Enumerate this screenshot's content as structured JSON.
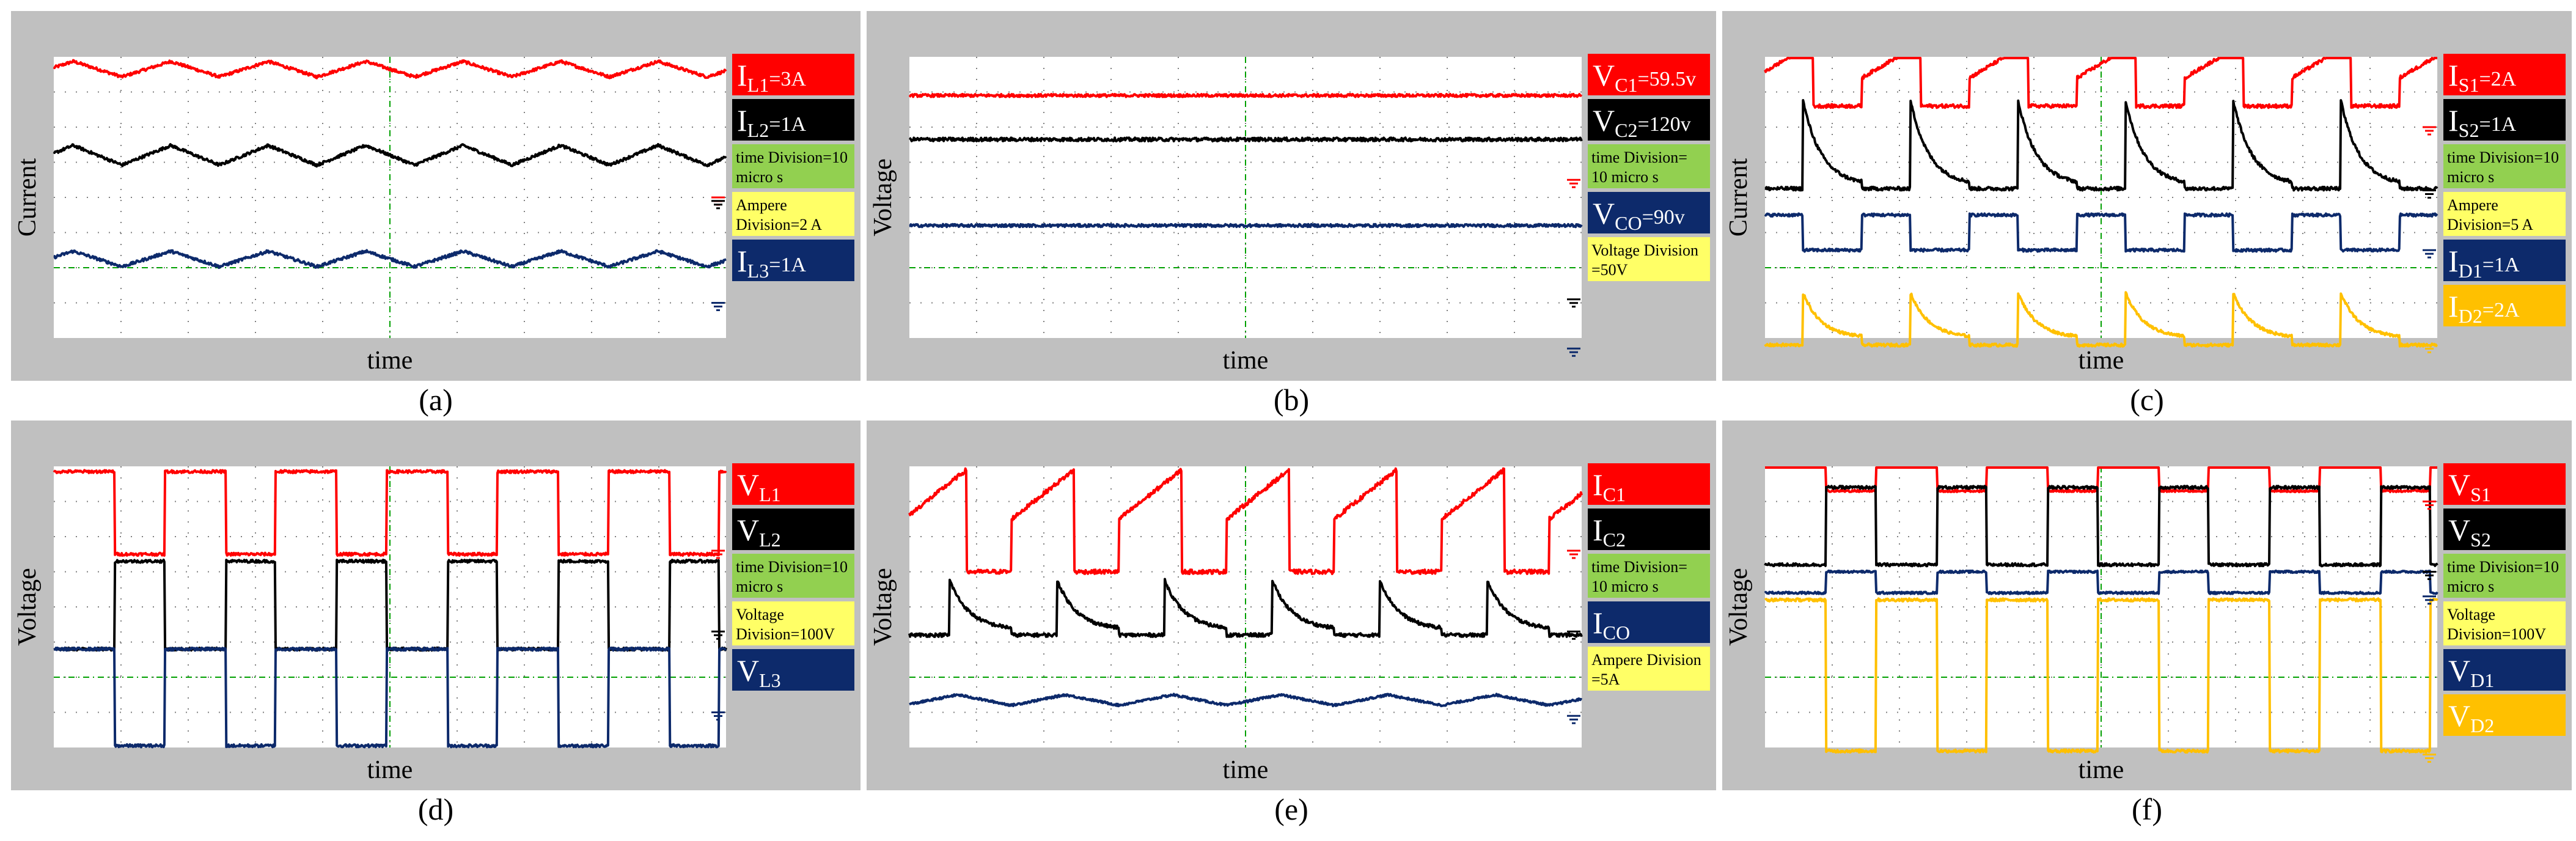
{
  "colors": {
    "red": "#ff0000",
    "black": "#000000",
    "navy": "#0d2a6b",
    "gold": "#ffc000",
    "green": "#92d050",
    "yellow": "#ffff66",
    "frame": "#c0c0c0",
    "grid_dot": "#808080",
    "ground": "#00a000"
  },
  "chart_data": [
    {
      "id": "a",
      "caption": "(a)",
      "type": "line",
      "title": "",
      "xlabel": "time",
      "ylabel": "Current",
      "x_divisions": 10,
      "y_divisions": 8,
      "ylim": [
        0,
        8
      ],
      "legend": [
        {
          "kind": "label",
          "color": "red",
          "pre": "I",
          "sub": "L1",
          "post": "=3A"
        },
        {
          "kind": "label",
          "color": "black",
          "pre": "I",
          "sub": "L2",
          "post": "=1A"
        },
        {
          "kind": "note",
          "color": "green",
          "lines": [
            "time Division=10",
            "micro s"
          ]
        },
        {
          "kind": "note",
          "color": "yellow",
          "lines": [
            "Ampere",
            "Division=2 A"
          ]
        },
        {
          "kind": "label",
          "color": "navy",
          "pre": "I",
          "sub": "L3",
          "post": "=1A"
        }
      ],
      "series": [
        {
          "name": "IL1",
          "color": "red",
          "shape": "triangle",
          "mid": 7.65,
          "amp": 0.22,
          "period": 1.45,
          "phase": 0.3,
          "noise": 0.04
        },
        {
          "name": "IL2",
          "color": "black",
          "shape": "triangle",
          "mid": 5.2,
          "amp": 0.28,
          "period": 1.45,
          "phase": 0.3,
          "noise": 0.04
        },
        {
          "name": "IL3",
          "color": "navy",
          "shape": "triangle",
          "mid": 2.25,
          "amp": 0.22,
          "period": 1.45,
          "phase": 0.3,
          "noise": 0.04
        }
      ],
      "ground_markers": [
        {
          "color": "red",
          "y": 4.0
        },
        {
          "color": "black",
          "y": 3.9
        },
        {
          "color": "navy",
          "y": 1.0
        }
      ]
    },
    {
      "id": "b",
      "caption": "(b)",
      "type": "line",
      "title": "",
      "xlabel": "time",
      "ylabel": "Voltage",
      "x_divisions": 10,
      "y_divisions": 8,
      "ylim": [
        0,
        8
      ],
      "legend": [
        {
          "kind": "label",
          "color": "red",
          "pre": "V",
          "sub": "C1",
          "post": "=59.5v"
        },
        {
          "kind": "label",
          "color": "black",
          "pre": "V",
          "sub": "C2",
          "post": "=120v"
        },
        {
          "kind": "note",
          "color": "green",
          "lines": [
            "time Division=",
            "10 micro s"
          ]
        },
        {
          "kind": "label",
          "color": "navy",
          "pre": "V",
          "sub": "CO",
          "post": "=90v"
        },
        {
          "kind": "note",
          "color": "yellow",
          "lines": [
            "Voltage Division",
            "=50V"
          ]
        }
      ],
      "series": [
        {
          "name": "VC1",
          "color": "red",
          "shape": "flat",
          "mid": 6.9,
          "amp": 0,
          "period": 1,
          "phase": 0,
          "noise": 0.04
        },
        {
          "name": "VC2",
          "color": "black",
          "shape": "flat",
          "mid": 5.65,
          "amp": 0,
          "period": 1,
          "phase": 0,
          "noise": 0.05
        },
        {
          "name": "VCO",
          "color": "navy",
          "shape": "flat",
          "mid": 3.2,
          "amp": 0,
          "period": 1,
          "phase": 0,
          "noise": 0.04
        }
      ],
      "ground_markers": [
        {
          "color": "red",
          "y": 4.5
        },
        {
          "color": "black",
          "y": 1.1
        },
        {
          "color": "navy",
          "y": -0.3
        }
      ]
    },
    {
      "id": "c",
      "caption": "(c)",
      "type": "line",
      "title": "",
      "xlabel": "time",
      "ylabel": "Current",
      "x_divisions": 10,
      "y_divisions": 8,
      "ylim": [
        0,
        8
      ],
      "legend": [
        {
          "kind": "label",
          "color": "red",
          "pre": "I",
          "sub": "S1",
          "post": "=2A"
        },
        {
          "kind": "label",
          "color": "black",
          "pre": "I",
          "sub": "S2",
          "post": "=1A"
        },
        {
          "kind": "note",
          "color": "green",
          "lines": [
            "time Division=10",
            "micro s"
          ]
        },
        {
          "kind": "note",
          "color": "yellow",
          "lines": [
            "Ampere",
            "Division=5 A"
          ]
        },
        {
          "kind": "label",
          "color": "navy",
          "pre": "I",
          "sub": "D1",
          "post": "=1A"
        },
        {
          "kind": "label",
          "color": "gold",
          "pre": "I",
          "sub": "D2",
          "post": "=2A"
        }
      ],
      "series": [
        {
          "name": "IS1",
          "color": "red",
          "shape": "ramp_on",
          "base": 6.6,
          "hi_start": 7.4,
          "hi_end": 8.4,
          "period": 1.6,
          "duty": 0.55,
          "phase": 0.1,
          "noise": 0.05
        },
        {
          "name": "IS2",
          "color": "black",
          "shape": "decay_peak",
          "base": 4.25,
          "low": 4.35,
          "peak": 6.8,
          "period": 1.6,
          "duty": 0.45,
          "phase": 0.1,
          "noise": 0.05
        },
        {
          "name": "ID1",
          "color": "navy",
          "shape": "square",
          "lo": 2.5,
          "hi": 3.5,
          "period": 1.6,
          "duty": 0.45,
          "phase": 0.1,
          "noise": 0.04
        },
        {
          "name": "ID2",
          "color": "gold",
          "shape": "decay_peak",
          "base": -0.2,
          "low": 0.0,
          "peak": 1.3,
          "period": 1.6,
          "duty": 0.45,
          "phase": 0.1,
          "noise": 0.04
        }
      ],
      "ground_markers": [
        {
          "color": "red",
          "y": 6.0
        },
        {
          "color": "black",
          "y": 4.2
        },
        {
          "color": "navy",
          "y": 2.5
        },
        {
          "color": "gold",
          "y": -0.2
        }
      ]
    },
    {
      "id": "d",
      "caption": "(d)",
      "type": "line",
      "title": "",
      "xlabel": "time",
      "ylabel": "Voltage",
      "x_divisions": 10,
      "y_divisions": 8,
      "ylim": [
        0,
        8
      ],
      "legend": [
        {
          "kind": "label",
          "color": "red",
          "pre": "V",
          "sub": "L1",
          "post": ""
        },
        {
          "kind": "label",
          "color": "black",
          "pre": "V",
          "sub": "L2",
          "post": ""
        },
        {
          "kind": "note",
          "color": "green",
          "lines": [
            "time Division=10",
            "micro s"
          ]
        },
        {
          "kind": "note",
          "color": "yellow",
          "lines": [
            "Voltage",
            "Division=100V"
          ]
        },
        {
          "kind": "label",
          "color": "navy",
          "pre": "V",
          "sub": "L3",
          "post": ""
        }
      ],
      "series": [
        {
          "name": "VL1",
          "color": "red",
          "shape": "square",
          "lo": 5.5,
          "hi": 7.85,
          "period": 1.65,
          "duty": 0.55,
          "phase": 0.0,
          "noise": 0.04
        },
        {
          "name": "VL2",
          "color": "black",
          "shape": "square_inv",
          "lo": 2.8,
          "hi": 5.3,
          "period": 1.65,
          "duty": 0.55,
          "phase": 0.0,
          "noise": 0.04
        },
        {
          "name": "VL3",
          "color": "navy",
          "shape": "square",
          "lo": 0.05,
          "hi": 2.8,
          "period": 1.65,
          "duty": 0.55,
          "phase": 0.0,
          "noise": 0.04
        }
      ],
      "ground_markers": [
        {
          "color": "red",
          "y": 5.6
        },
        {
          "color": "black",
          "y": 3.3
        },
        {
          "color": "navy",
          "y": 1.0
        }
      ]
    },
    {
      "id": "e",
      "caption": "(e)",
      "type": "line",
      "title": "",
      "xlabel": "time",
      "ylabel": "Voltage",
      "x_divisions": 10,
      "y_divisions": 8,
      "ylim": [
        0,
        8
      ],
      "legend": [
        {
          "kind": "label",
          "color": "red",
          "pre": "I",
          "sub": "C1",
          "post": ""
        },
        {
          "kind": "label",
          "color": "black",
          "pre": "I",
          "sub": "C2",
          "post": ""
        },
        {
          "kind": "note",
          "color": "green",
          "lines": [
            "time Division=",
            "10 micro s"
          ]
        },
        {
          "kind": "label",
          "color": "navy",
          "pre": "I",
          "sub": "CO",
          "post": ""
        },
        {
          "kind": "note",
          "color": "yellow",
          "lines": [
            "Ampere Division",
            "=5A"
          ]
        }
      ],
      "series": [
        {
          "name": "IC1",
          "color": "red",
          "shape": "ramp_on",
          "base": 5.0,
          "hi_start": 6.5,
          "hi_end": 7.9,
          "period": 1.6,
          "duty": 0.58,
          "phase": 0.05,
          "noise": 0.06
        },
        {
          "name": "IC2",
          "color": "black",
          "shape": "decay_peak",
          "base": 3.2,
          "low": 3.35,
          "peak": 4.8,
          "period": 1.6,
          "duty": 0.42,
          "phase": 0.05,
          "noise": 0.05
        },
        {
          "name": "ICO",
          "color": "navy",
          "shape": "triangle",
          "mid": 1.35,
          "amp": 0.15,
          "period": 1.6,
          "phase": 0.05,
          "noise": 0.03
        }
      ],
      "ground_markers": [
        {
          "color": "red",
          "y": 5.6
        },
        {
          "color": "black",
          "y": 3.3
        },
        {
          "color": "navy",
          "y": 0.9
        }
      ]
    },
    {
      "id": "f",
      "caption": "(f)",
      "type": "line",
      "title": "",
      "xlabel": "time",
      "ylabel": "Voltage",
      "x_divisions": 10,
      "y_divisions": 8,
      "ylim": [
        0,
        8
      ],
      "legend": [
        {
          "kind": "label",
          "color": "red",
          "pre": "V",
          "sub": "S1",
          "post": ""
        },
        {
          "kind": "label",
          "color": "black",
          "pre": "V",
          "sub": "S2",
          "post": ""
        },
        {
          "kind": "note",
          "color": "green",
          "lines": [
            "time Division=10",
            "micro s"
          ]
        },
        {
          "kind": "note",
          "color": "yellow",
          "lines": [
            "Voltage",
            "Division=100V"
          ]
        },
        {
          "kind": "label",
          "color": "navy",
          "pre": "V",
          "sub": "D1",
          "post": ""
        },
        {
          "kind": "label",
          "color": "gold",
          "pre": "V",
          "sub": "D2",
          "post": ""
        }
      ],
      "series": [
        {
          "name": "VS1",
          "color": "red",
          "shape": "square",
          "lo": 7.3,
          "hi": 8.0,
          "period": 1.65,
          "duty": 0.55,
          "phase": 0.0,
          "noise": 0.03
        },
        {
          "name": "VS2",
          "color": "black",
          "shape": "square_inv",
          "lo": 5.2,
          "hi": 7.4,
          "period": 1.65,
          "duty": 0.55,
          "phase": 0.0,
          "noise": 0.04
        },
        {
          "name": "VD1",
          "color": "navy",
          "shape": "square_inv",
          "lo": 4.4,
          "hi": 5.0,
          "period": 1.65,
          "duty": 0.55,
          "phase": 0.0,
          "noise": 0.03
        },
        {
          "name": "VD2",
          "color": "gold",
          "shape": "square",
          "lo": -0.1,
          "hi": 4.2,
          "period": 1.65,
          "duty": 0.55,
          "phase": 0.0,
          "noise": 0.04
        }
      ],
      "ground_markers": [
        {
          "color": "red",
          "y": 7.0
        },
        {
          "color": "black",
          "y": 5.0
        },
        {
          "color": "navy",
          "y": 4.3
        },
        {
          "color": "gold",
          "y": -0.2
        }
      ]
    }
  ]
}
